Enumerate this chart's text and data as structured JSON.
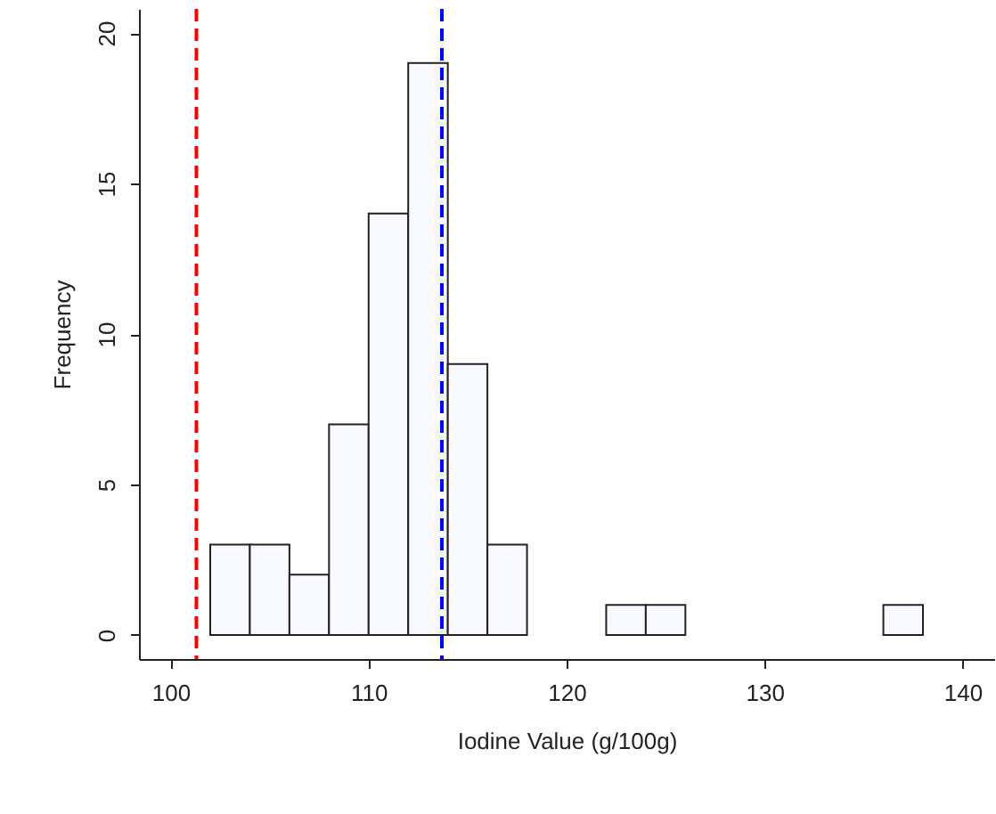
{
  "chart_data": {
    "type": "histogram",
    "xlabel": "Iodine Value (g/100g)",
    "ylabel": "Frequency",
    "bins": [
      102,
      104,
      106,
      108,
      110,
      112,
      114,
      116,
      118,
      120,
      122,
      124,
      126,
      128,
      130,
      132,
      134,
      136,
      138
    ],
    "values": [
      3,
      3,
      2,
      7,
      14,
      19,
      9,
      3,
      0,
      0,
      1,
      1,
      0,
      0,
      0,
      0,
      0,
      1
    ],
    "color": "#f8f8ff",
    "xlim": [
      98.4,
      141.6
    ],
    "xticks": [
      100,
      110,
      120,
      130,
      140
    ],
    "ylim": [
      -0.8,
      20.8
    ],
    "yticks": [
      0,
      5,
      10,
      15,
      20
    ],
    "ref_lines": [
      {
        "axis": "x",
        "value": 101.3,
        "color": "#ff0000",
        "line_style": "dashed"
      },
      {
        "axis": "x",
        "value": 113.7,
        "color": "#0000ff",
        "line_style": "dashed"
      }
    ],
    "grid": false
  }
}
